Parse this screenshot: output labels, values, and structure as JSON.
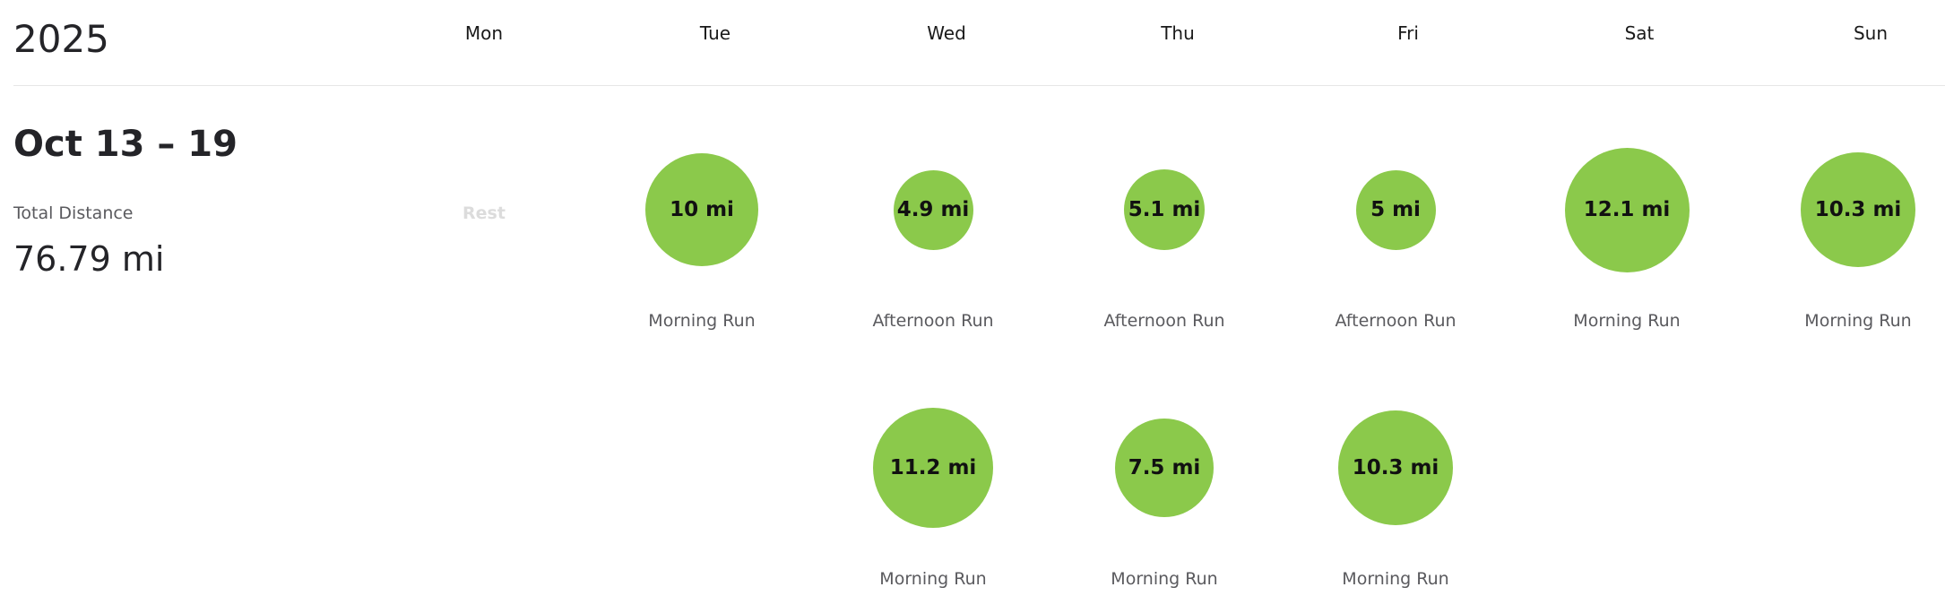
{
  "header": {
    "year": "2025",
    "days": [
      "Mon",
      "Tue",
      "Wed",
      "Thu",
      "Fri",
      "Sat",
      "Sun"
    ]
  },
  "week": {
    "range": "Oct 13 – 19",
    "total_label": "Total Distance",
    "total_value": "76.79 mi",
    "rest_label": "Rest"
  },
  "activities": [
    {
      "day": "Tue",
      "row": 0,
      "miles": 10,
      "distance": "10 mi",
      "name": "Morning Run"
    },
    {
      "day": "Wed",
      "row": 0,
      "miles": 4.9,
      "distance": "4.9 mi",
      "name": "Afternoon Run"
    },
    {
      "day": "Thu",
      "row": 0,
      "miles": 5.1,
      "distance": "5.1 mi",
      "name": "Afternoon Run"
    },
    {
      "day": "Fri",
      "row": 0,
      "miles": 5,
      "distance": "5 mi",
      "name": "Afternoon Run"
    },
    {
      "day": "Sat",
      "row": 0,
      "miles": 12.1,
      "distance": "12.1 mi",
      "name": "Morning Run"
    },
    {
      "day": "Sun",
      "row": 0,
      "miles": 10.3,
      "distance": "10.3 mi",
      "name": "Morning Run"
    },
    {
      "day": "Wed",
      "row": 1,
      "miles": 11.2,
      "distance": "11.2 mi",
      "name": "Morning Run"
    },
    {
      "day": "Thu",
      "row": 1,
      "miles": 7.5,
      "distance": "7.5 mi",
      "name": "Morning Run"
    },
    {
      "day": "Fri",
      "row": 1,
      "miles": 10.3,
      "distance": "10.3 mi",
      "name": "Morning Run"
    }
  ],
  "colors": {
    "bubble": "#8bc94b",
    "text": "#242428",
    "muted": "#5a5a5e",
    "rest": "#dcdcdc"
  }
}
